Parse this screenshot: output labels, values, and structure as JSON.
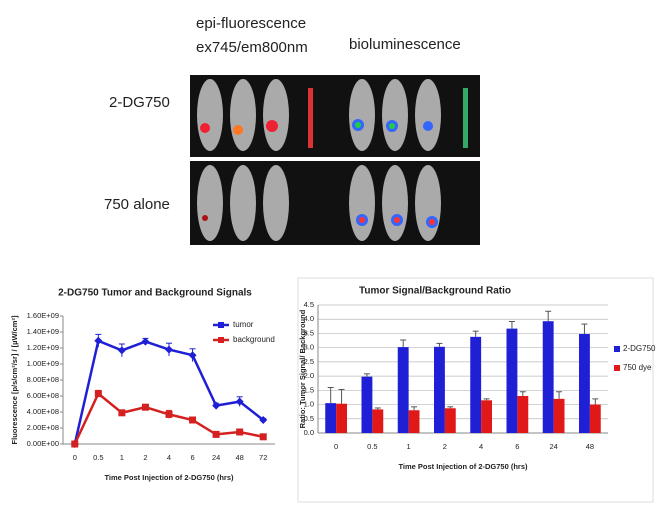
{
  "figure": {
    "epi_fluorescence": [
      "epi-fluorescence",
      "ex745/em800nm"
    ],
    "bioluminescence": "bioluminescence",
    "rows": [
      "2-DG750",
      "750 alone"
    ]
  },
  "chart_data": [
    {
      "type": "line",
      "title": "2-DG750 Tumor and Background Signals",
      "y_label": "Fluorescence [p/s/cm²/sr] / [µW/cm²]",
      "x_label": "Time Post Injection of 2-DG750 (hrs)",
      "categories": [
        "0",
        "0.5",
        "1",
        "2",
        "4",
        "6",
        "24",
        "48",
        "72"
      ],
      "series": [
        {
          "name": "tumor",
          "color": "#1f1fd6",
          "marker": "diamond",
          "values": [
            0,
            1290000000,
            1170000000,
            1280000000,
            1180000000,
            1110000000,
            480000000,
            530000000,
            300000000
          ],
          "errors": [
            0,
            80000000,
            80000000,
            40000000,
            80000000,
            80000000,
            30000000,
            60000000,
            20000000
          ]
        },
        {
          "name": "background",
          "color": "#d42020",
          "marker": "square",
          "values": [
            0,
            630000000,
            390000000,
            460000000,
            370000000,
            300000000,
            120000000,
            150000000,
            90000000
          ],
          "errors": [
            0,
            40000000,
            20000000,
            20000000,
            50000000,
            30000000,
            20000000,
            20000000,
            10000000
          ]
        }
      ],
      "ylim": [
        0,
        1600000000
      ],
      "yticks": [
        {
          "value": 0,
          "label": "0.00E+00"
        },
        {
          "value": 200000000,
          "label": "2.00E+08"
        },
        {
          "value": 400000000,
          "label": "4.00E+08"
        },
        {
          "value": 600000000,
          "label": "6.00E+08"
        },
        {
          "value": 800000000,
          "label": "8.00E+08"
        },
        {
          "value": 1000000000,
          "label": "1.00E+09"
        },
        {
          "value": 1200000000,
          "label": "1.20E+09"
        },
        {
          "value": 1400000000,
          "label": "1.40E+09"
        },
        {
          "value": 1600000000,
          "label": "1.60E+09"
        }
      ],
      "grid": false,
      "legend": "upper right"
    },
    {
      "type": "bar",
      "title": "Tumor Signal/Background Ratio",
      "y_label": "Ratio: Tumor Signal/ Background",
      "x_label": "Time Post Injection of 2-DG750 (hrs)",
      "categories": [
        "0",
        "0.5",
        "1",
        "2",
        "4",
        "6",
        "24",
        "48"
      ],
      "series": [
        {
          "name": "2-DG750",
          "color": "#1f1fd6",
          "values": [
            1.05,
            1.98,
            3.02,
            3.03,
            3.38,
            3.67,
            3.93,
            3.48
          ],
          "errors": [
            0.55,
            0.1,
            0.25,
            0.12,
            0.2,
            0.25,
            0.35,
            0.35
          ]
        },
        {
          "name": "750 dye",
          "color": "#e01818",
          "values": [
            1.03,
            0.83,
            0.8,
            0.87,
            1.15,
            1.3,
            1.2,
            1.0
          ],
          "errors": [
            0.5,
            0.05,
            0.12,
            0.05,
            0.05,
            0.15,
            0.25,
            0.2
          ]
        }
      ],
      "ylim": [
        0,
        4.5
      ],
      "yticks": [
        {
          "value": 0,
          "label": "0.0"
        },
        {
          "value": 0.5,
          "label": "0.5"
        },
        {
          "value": 1,
          "label": "1.0"
        },
        {
          "value": 1.5,
          "label": "1.5"
        },
        {
          "value": 2,
          "label": "2.0"
        },
        {
          "value": 2.5,
          "label": "2.5"
        },
        {
          "value": 3,
          "label": "3.0"
        },
        {
          "value": 3.5,
          "label": "3.5"
        },
        {
          "value": 4,
          "label": "4.0"
        },
        {
          "value": 4.5,
          "label": "4.5"
        }
      ],
      "grid": true,
      "legend": "right"
    }
  ]
}
